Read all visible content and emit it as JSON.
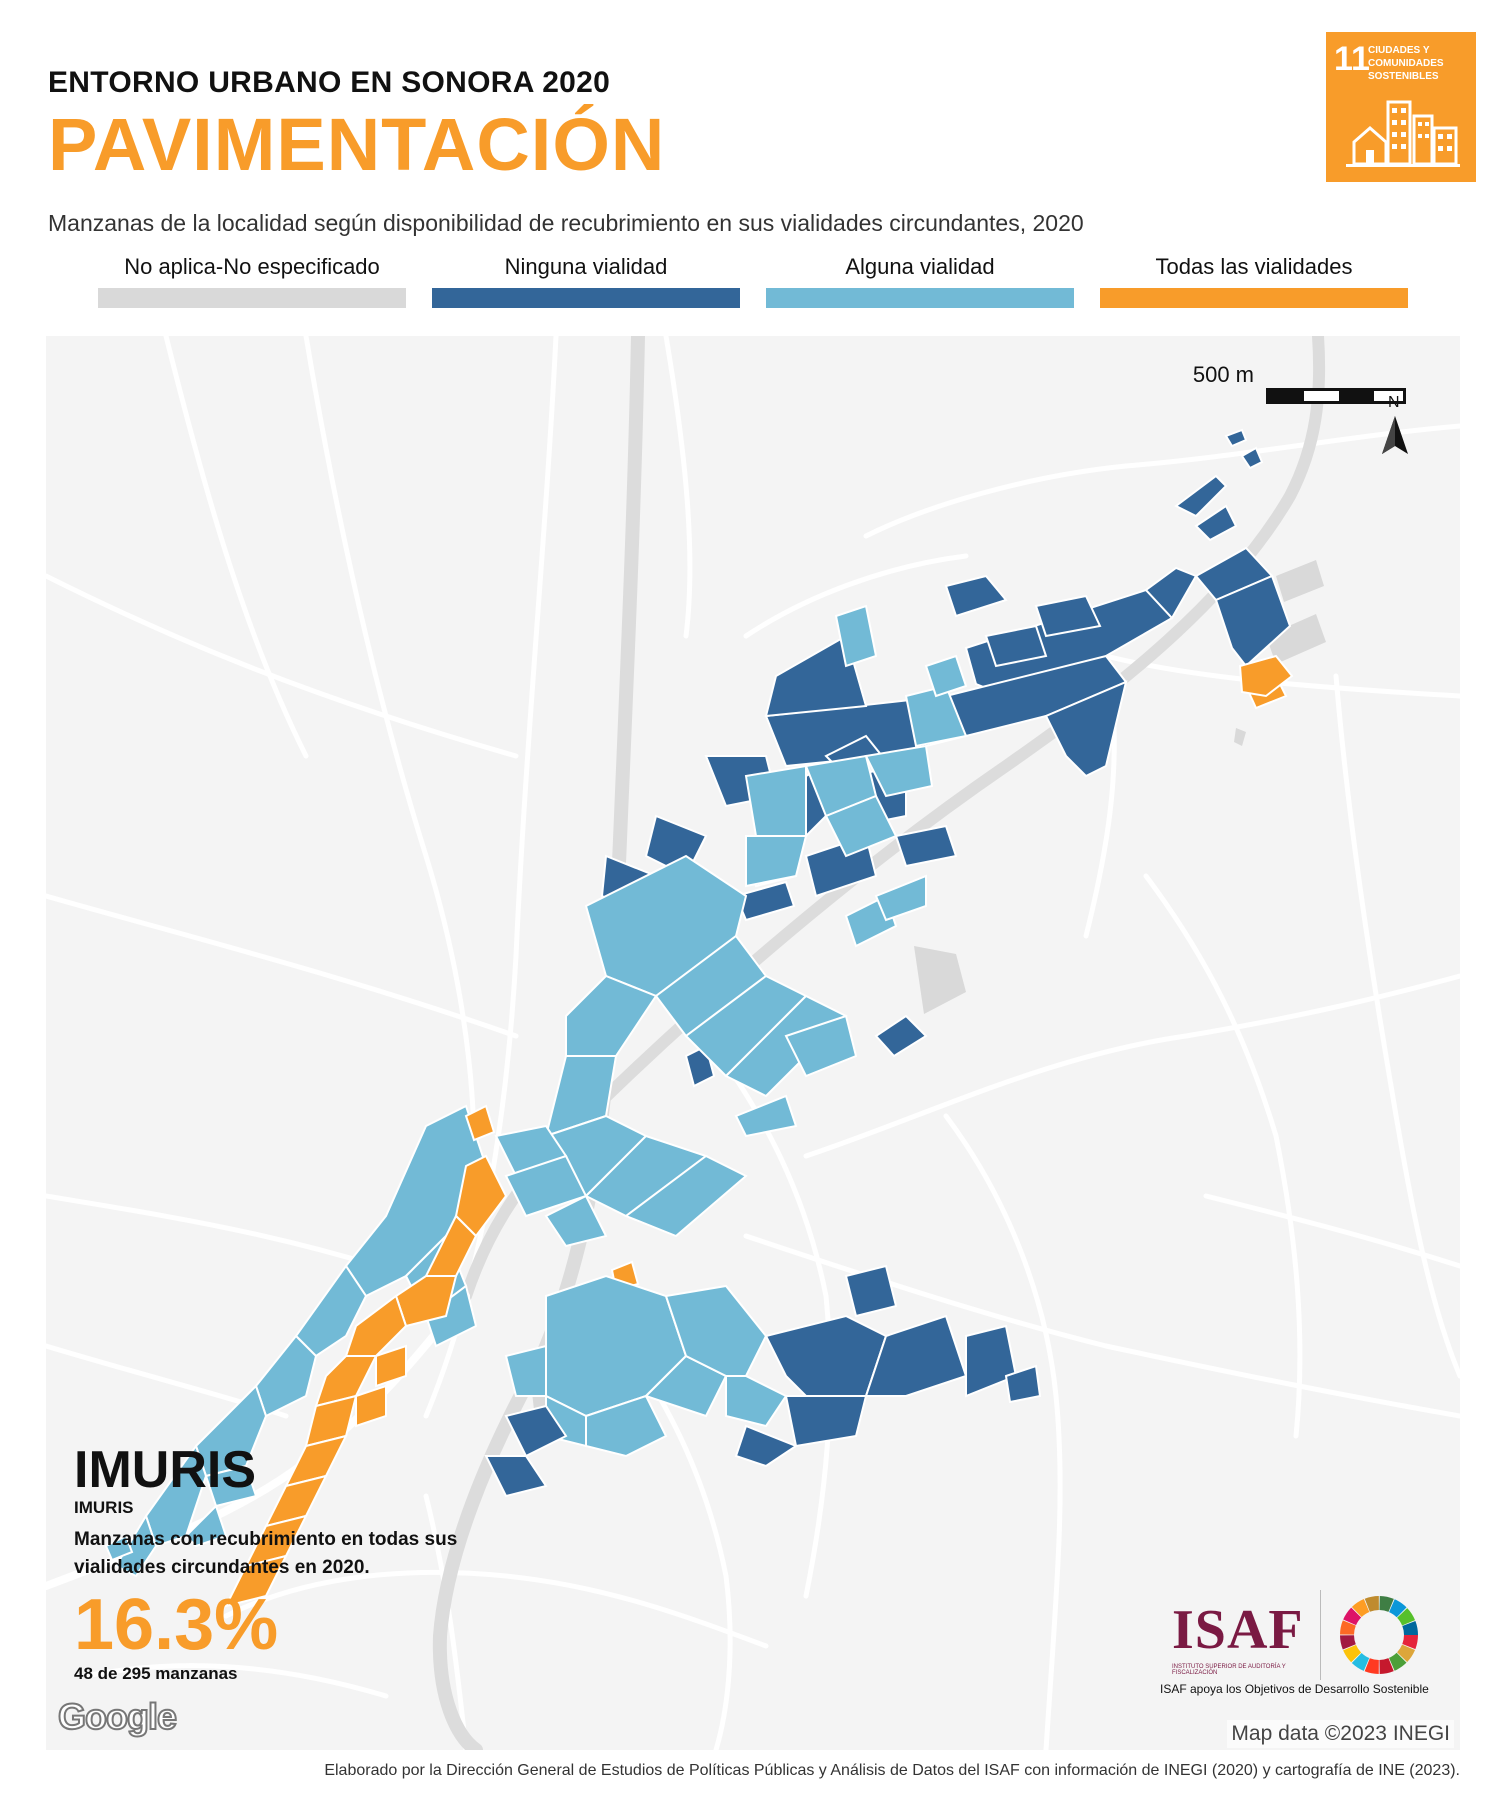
{
  "header": {
    "title_top": "ENTORNO URBANO EN SONORA 2020",
    "title_main": "PAVIMENTACIÓN",
    "subtitle": "Manzanas de la localidad según disponibilidad de recubrimiento en sus vialidades circundantes, 2020"
  },
  "ods_badge": {
    "number": "11",
    "label": "CIUDADES Y COMUNIDADES SOSTENIBLES",
    "color": "#f89c2a",
    "icon": "city-buildings-icon"
  },
  "legend": [
    {
      "label": "No aplica-No especificado",
      "color": "#d9d9d9"
    },
    {
      "label": "Ninguna vialidad",
      "color": "#336699"
    },
    {
      "label": "Alguna vialidad",
      "color": "#72bad6"
    },
    {
      "label": "Todas las vialidades",
      "color": "#f89c2a"
    }
  ],
  "map": {
    "scale_label": "500 m",
    "north_label": "N",
    "attribution": "Map data ©2023 INEGI",
    "provider_logo": "Google"
  },
  "locality": {
    "name": "IMURIS",
    "municipality": "IMURIS",
    "description": "Manzanas con recubrimiento en todas sus vialidades circundantes en 2020.",
    "percent": "16.3%",
    "count_text": "48 de 295 manzanas"
  },
  "isaf": {
    "wordmark": "ISAF",
    "subtext": "INSTITUTO SUPERIOR DE AUDITORÍA Y FISCALIZACIÓN",
    "caption": "ISAF apoya los Objetivos de Desarrollo Sostenible",
    "sdg_wheel_icon": "sdg-wheel-icon"
  },
  "footer": {
    "credit": "Elaborado por la Dirección General de Estudios de Políticas Públicas y Análisis de Datos del ISAF con información de INEGI (2020) y cartografía de INE (2023)."
  }
}
